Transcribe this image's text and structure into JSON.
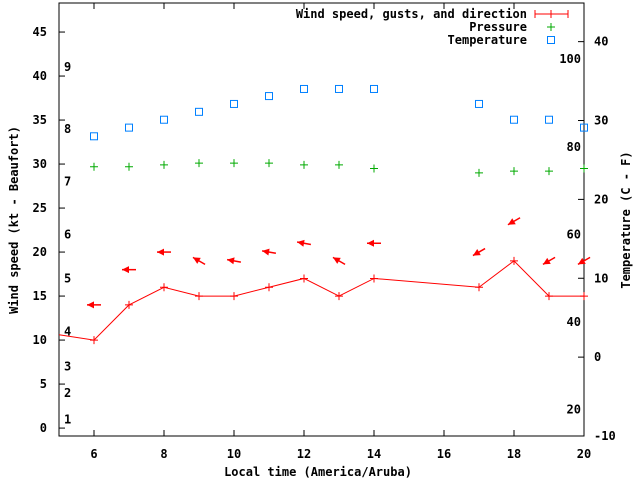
{
  "chart_data": {
    "type": "line",
    "xlabel": "Local time (America/Aruba)",
    "ylabel": "Wind speed (kt - Beaufort)",
    "y2label": "Temperature (C - F)",
    "xlim": [
      5,
      20
    ],
    "ylim": [
      -0.9,
      48.3
    ],
    "y2lim": [
      -10,
      44.9
    ],
    "xticks": [
      6,
      8,
      10,
      12,
      14,
      16,
      18,
      20
    ],
    "yticks": [
      0,
      5,
      10,
      15,
      20,
      25,
      30,
      35,
      40,
      45
    ],
    "y2ticks": [
      -10,
      0,
      10,
      20,
      30,
      40
    ],
    "beaufort_labels": [
      {
        "label": "1",
        "kt": 1
      },
      {
        "label": "2",
        "kt": 4
      },
      {
        "label": "3",
        "kt": 7
      },
      {
        "label": "4",
        "kt": 11
      },
      {
        "label": "5",
        "kt": 17
      },
      {
        "label": "6",
        "kt": 22
      },
      {
        "label": "7",
        "kt": 28
      },
      {
        "label": "8",
        "kt": 34
      },
      {
        "label": "9",
        "kt": 41
      }
    ],
    "fahrenheit_labels": [
      {
        "label": "100",
        "f": 100
      },
      {
        "label": "80",
        "f": 80
      },
      {
        "label": "60",
        "f": 60
      },
      {
        "label": "40",
        "f": 40
      },
      {
        "label": "20",
        "f": 20
      }
    ],
    "legend": {
      "placement": "top-right",
      "entries": [
        "Wind speed, gusts, and direction",
        "Pressure",
        "Temperature"
      ]
    },
    "series": [
      {
        "name": "Wind speed, gusts, and direction",
        "color": "#ff0000",
        "axis": "left",
        "x": [
          5,
          6,
          7,
          8,
          9,
          10,
          11,
          12,
          13,
          14,
          17,
          18,
          19,
          20
        ],
        "y": [
          10.6,
          10,
          14,
          16,
          15,
          15,
          16,
          17,
          15,
          17,
          16,
          19,
          15,
          15
        ]
      },
      {
        "name": "Wind direction arrows",
        "color": "#ff0000",
        "axis": "left",
        "x": [
          6,
          7,
          8,
          9,
          10,
          11,
          12,
          13,
          14,
          17,
          18,
          19,
          20
        ],
        "y": [
          14,
          18,
          20,
          19,
          19,
          20,
          21,
          19,
          21,
          20,
          23.5,
          19,
          19
        ],
        "direction_deg": [
          90,
          90,
          90,
          120,
          100,
          100,
          100,
          120,
          90,
          60,
          60,
          60,
          60
        ]
      },
      {
        "name": "Pressure",
        "color": "#00aa00",
        "axis": "left",
        "x": [
          6,
          7,
          8,
          9,
          10,
          11,
          12,
          13,
          14,
          17,
          18,
          19,
          20
        ],
        "y": [
          29.7,
          29.7,
          29.9,
          30.1,
          30.1,
          30.1,
          29.9,
          29.9,
          29.5,
          29.0,
          29.2,
          29.2,
          29.5
        ]
      },
      {
        "name": "Temperature",
        "color": "#0080ff",
        "axis": "right",
        "x": [
          6,
          7,
          8,
          9,
          10,
          11,
          12,
          13,
          14,
          17,
          18,
          19,
          20
        ],
        "y": [
          28.0,
          29.1,
          30.1,
          31.1,
          32.1,
          33.1,
          34.0,
          34.0,
          34.0,
          32.1,
          30.1,
          30.1,
          29.1
        ]
      }
    ]
  }
}
